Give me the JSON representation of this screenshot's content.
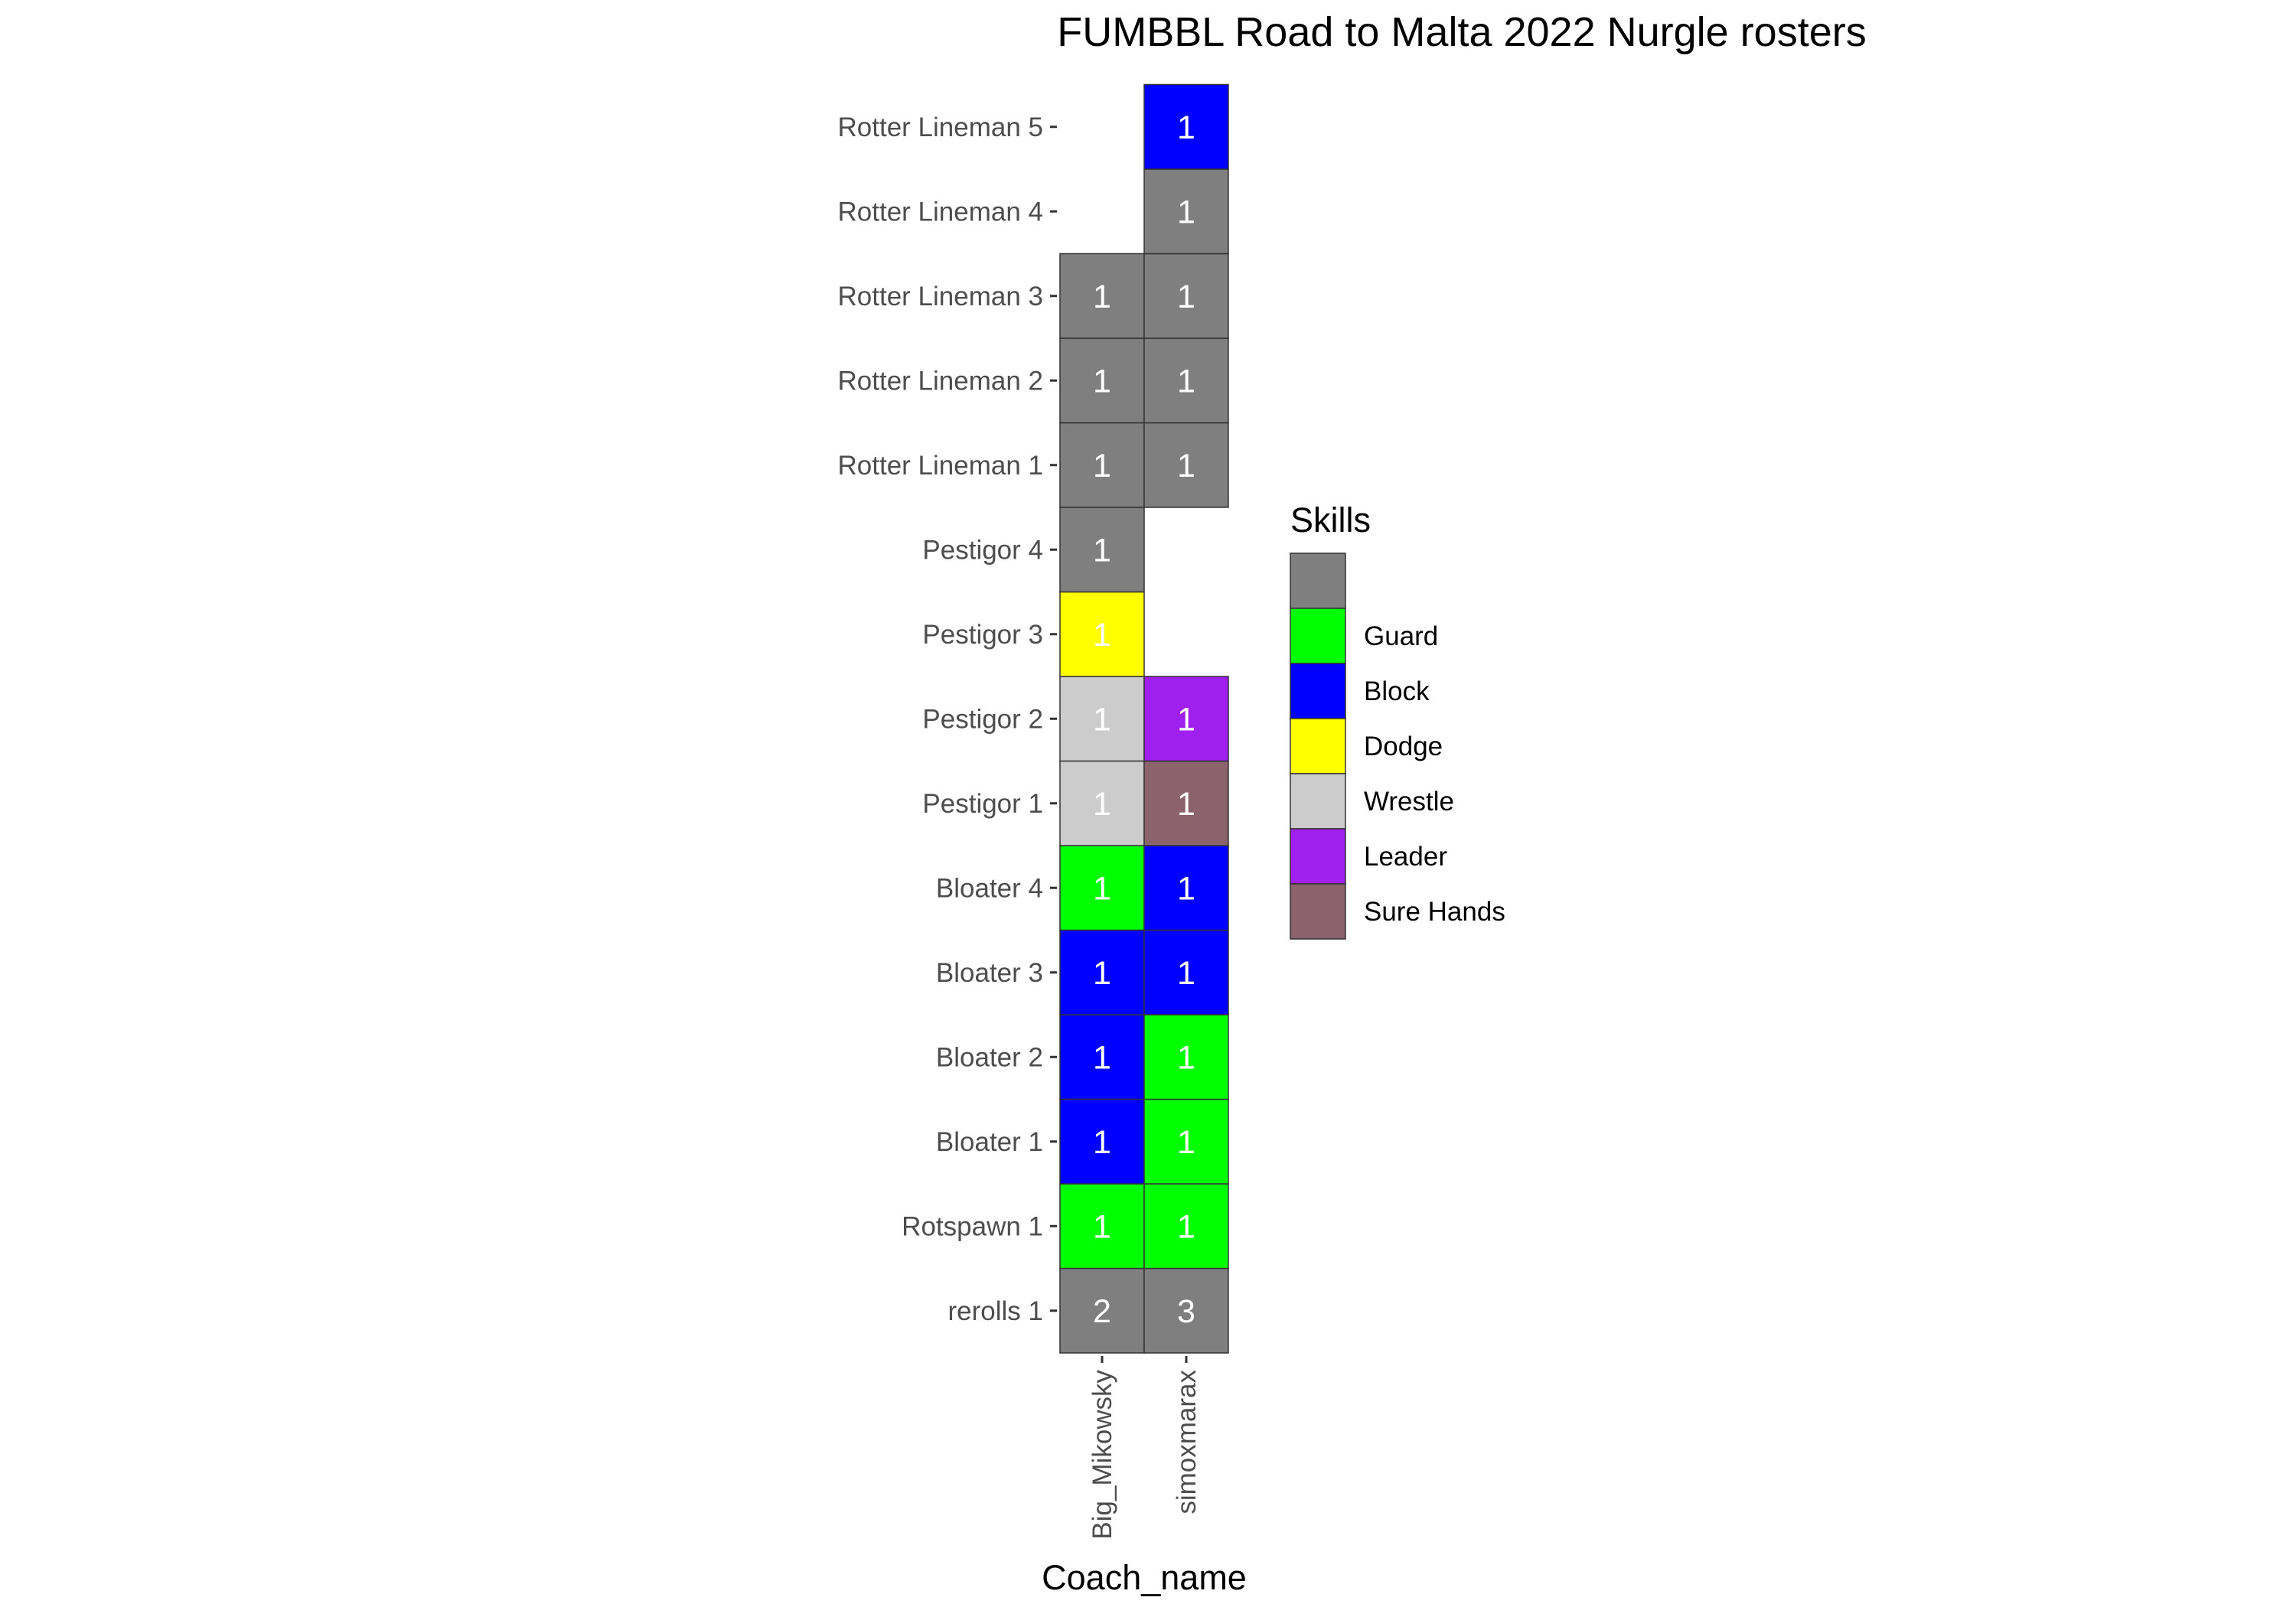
{
  "chart_data": {
    "type": "heatmap",
    "title": "FUMBBL Road to Malta 2022 Nurgle rosters",
    "xlabel": "Coach_name",
    "ylabel": "",
    "x": [
      "Big_Mikowsky",
      "simoxmarax"
    ],
    "y": [
      "rerolls 1",
      "Rotspawn 1",
      "Bloater 1",
      "Bloater 2",
      "Bloater 3",
      "Bloater 4",
      "Pestigor 1",
      "Pestigor 2",
      "Pestigor 3",
      "Pestigor 4",
      "Rotter Lineman 1",
      "Rotter Lineman 2",
      "Rotter Lineman 3",
      "Rotter Lineman 4",
      "Rotter Lineman 5"
    ],
    "legend": {
      "title": "Skills",
      "position": "right",
      "entries": [
        {
          "label": "",
          "color": "#7f7f7f"
        },
        {
          "label": "Guard",
          "color": "#00ff00"
        },
        {
          "label": "Block",
          "color": "#0000ff"
        },
        {
          "label": "Dodge",
          "color": "#ffff00"
        },
        {
          "label": "Wrestle",
          "color": "#cccccc"
        },
        {
          "label": "Leader",
          "color": "#a020f0"
        },
        {
          "label": "Sure Hands",
          "color": "#8b636c"
        }
      ]
    },
    "cells": [
      {
        "x": "Big_Mikowsky",
        "y": "rerolls 1",
        "skill": "",
        "value": 2
      },
      {
        "x": "Big_Mikowsky",
        "y": "Rotspawn 1",
        "skill": "Guard",
        "value": 1
      },
      {
        "x": "Big_Mikowsky",
        "y": "Bloater 1",
        "skill": "Block",
        "value": 1
      },
      {
        "x": "Big_Mikowsky",
        "y": "Bloater 2",
        "skill": "Block",
        "value": 1
      },
      {
        "x": "Big_Mikowsky",
        "y": "Bloater 3",
        "skill": "Block",
        "value": 1
      },
      {
        "x": "Big_Mikowsky",
        "y": "Bloater 4",
        "skill": "Guard",
        "value": 1
      },
      {
        "x": "Big_Mikowsky",
        "y": "Pestigor 1",
        "skill": "Wrestle",
        "value": 1
      },
      {
        "x": "Big_Mikowsky",
        "y": "Pestigor 2",
        "skill": "Wrestle",
        "value": 1
      },
      {
        "x": "Big_Mikowsky",
        "y": "Pestigor 3",
        "skill": "Dodge",
        "value": 1
      },
      {
        "x": "Big_Mikowsky",
        "y": "Pestigor 4",
        "skill": "",
        "value": 1
      },
      {
        "x": "Big_Mikowsky",
        "y": "Rotter Lineman 1",
        "skill": "",
        "value": 1
      },
      {
        "x": "Big_Mikowsky",
        "y": "Rotter Lineman 2",
        "skill": "",
        "value": 1
      },
      {
        "x": "Big_Mikowsky",
        "y": "Rotter Lineman 3",
        "skill": "",
        "value": 1
      },
      {
        "x": "simoxmarax",
        "y": "rerolls 1",
        "skill": "",
        "value": 3
      },
      {
        "x": "simoxmarax",
        "y": "Rotspawn 1",
        "skill": "Guard",
        "value": 1
      },
      {
        "x": "simoxmarax",
        "y": "Bloater 1",
        "skill": "Guard",
        "value": 1
      },
      {
        "x": "simoxmarax",
        "y": "Bloater 2",
        "skill": "Guard",
        "value": 1
      },
      {
        "x": "simoxmarax",
        "y": "Bloater 3",
        "skill": "Block",
        "value": 1
      },
      {
        "x": "simoxmarax",
        "y": "Bloater 4",
        "skill": "Block",
        "value": 1
      },
      {
        "x": "simoxmarax",
        "y": "Pestigor 1",
        "skill": "Sure Hands",
        "value": 1
      },
      {
        "x": "simoxmarax",
        "y": "Pestigor 2",
        "skill": "Leader",
        "value": 1
      },
      {
        "x": "simoxmarax",
        "y": "Rotter Lineman 1",
        "skill": "",
        "value": 1
      },
      {
        "x": "simoxmarax",
        "y": "Rotter Lineman 2",
        "skill": "",
        "value": 1
      },
      {
        "x": "simoxmarax",
        "y": "Rotter Lineman 3",
        "skill": "",
        "value": 1
      },
      {
        "x": "simoxmarax",
        "y": "Rotter Lineman 4",
        "skill": "",
        "value": 1
      },
      {
        "x": "simoxmarax",
        "y": "Rotter Lineman 5",
        "skill": "Block",
        "value": 1
      }
    ]
  }
}
